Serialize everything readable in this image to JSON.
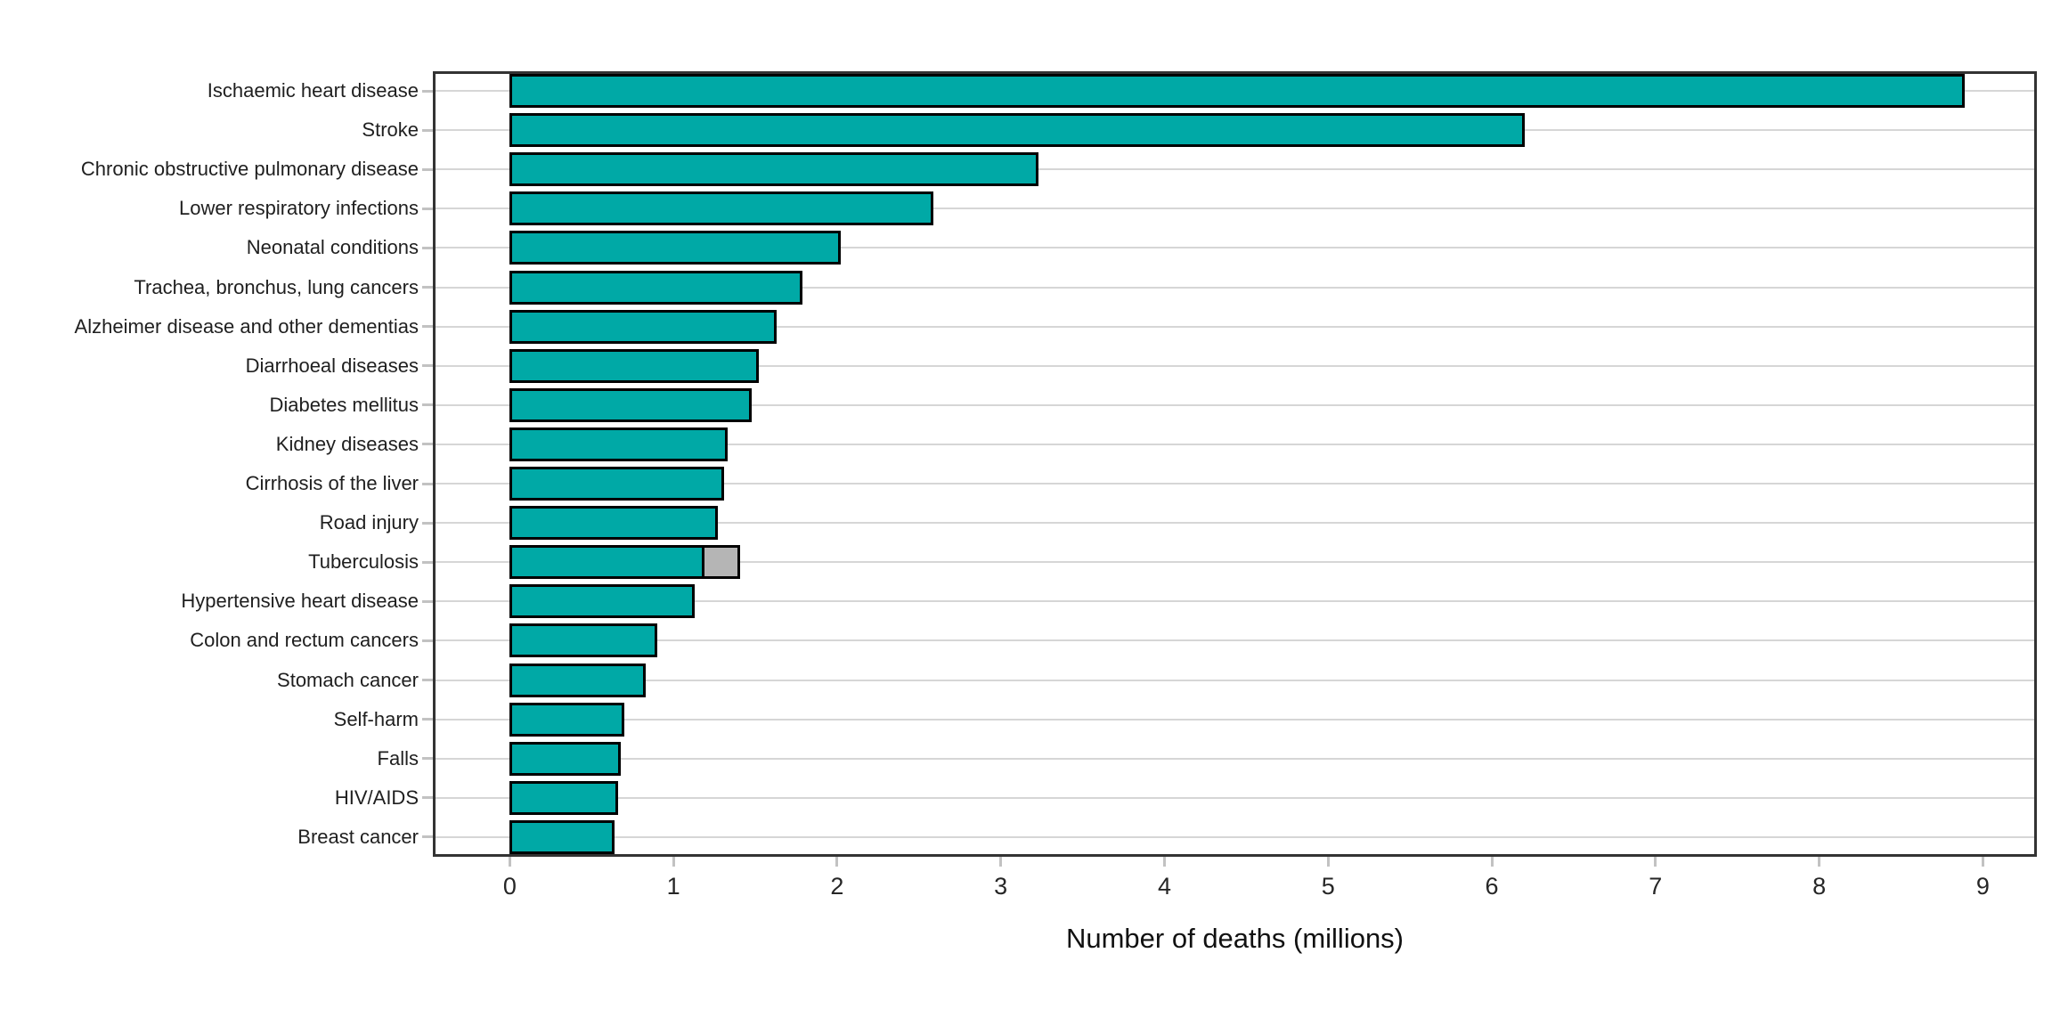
{
  "chart_data": {
    "type": "bar",
    "orientation": "horizontal",
    "xlabel": "Number of deaths (millions)",
    "ylabel": "",
    "xlim": [
      -0.47,
      9.33
    ],
    "x_ticks": [
      "0",
      "1",
      "2",
      "3",
      "4",
      "5",
      "6",
      "7",
      "8",
      "9"
    ],
    "grid": "horizontal-gridlines-only",
    "legend_position": "none",
    "colors": {
      "bar_fill": "#00a9a6",
      "bar_secondary_fill": "#b5b5b5",
      "bar_border": "#000000",
      "gridline": "#d6d6d6",
      "panel_border": "#333333",
      "tick_mark": "#c2c2c2",
      "tick_text": "#262626",
      "label_text": "#1f1f1f"
    },
    "bars": [
      {
        "label": "Ischaemic heart disease",
        "value": 8.89,
        "extra": 0
      },
      {
        "label": "Stroke",
        "value": 6.2,
        "extra": 0
      },
      {
        "label": "Chronic obstructive pulmonary disease",
        "value": 3.23,
        "extra": 0
      },
      {
        "label": "Lower respiratory infections",
        "value": 2.59,
        "extra": 0
      },
      {
        "label": "Neonatal conditions",
        "value": 2.02,
        "extra": 0
      },
      {
        "label": "Trachea, bronchus, lung cancers",
        "value": 1.79,
        "extra": 0
      },
      {
        "label": "Alzheimer disease and other dementias",
        "value": 1.63,
        "extra": 0
      },
      {
        "label": "Diarrhoeal diseases",
        "value": 1.52,
        "extra": 0
      },
      {
        "label": "Diabetes mellitus",
        "value": 1.48,
        "extra": 0
      },
      {
        "label": "Kidney diseases",
        "value": 1.33,
        "extra": 0
      },
      {
        "label": "Cirrhosis of the liver",
        "value": 1.31,
        "extra": 0
      },
      {
        "label": "Road injury",
        "value": 1.27,
        "extra": 0
      },
      {
        "label": "Tuberculosis",
        "value": 1.19,
        "extra": 0.22
      },
      {
        "label": "Hypertensive heart disease",
        "value": 1.13,
        "extra": 0
      },
      {
        "label": "Colon and rectum cancers",
        "value": 0.9,
        "extra": 0
      },
      {
        "label": "Stomach cancer",
        "value": 0.83,
        "extra": 0
      },
      {
        "label": "Self-harm",
        "value": 0.7,
        "extra": 0
      },
      {
        "label": "Falls",
        "value": 0.68,
        "extra": 0
      },
      {
        "label": "HIV/AIDS",
        "value": 0.66,
        "extra": 0
      },
      {
        "label": "Breast cancer",
        "value": 0.64,
        "extra": 0
      }
    ]
  }
}
